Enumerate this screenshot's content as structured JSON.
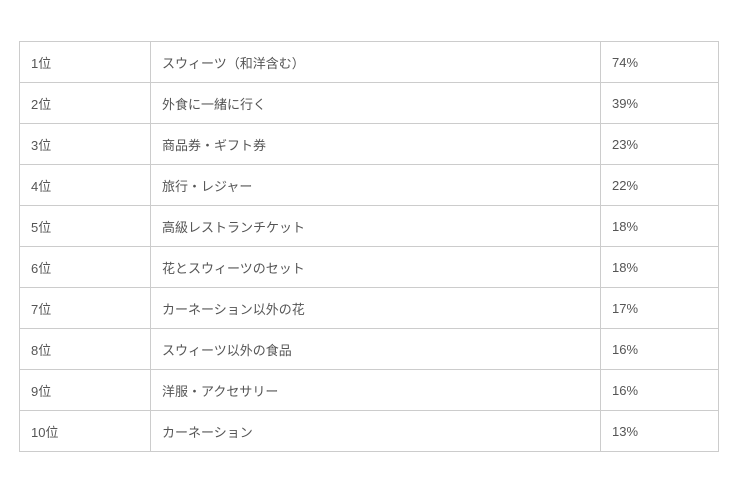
{
  "colors": {
    "background": "#ffffff",
    "border": "#cccccc",
    "text": "#555555"
  },
  "table": {
    "rows": [
      {
        "rank": "1位",
        "item": "スウィーツ（和洋含む）",
        "value": "74%"
      },
      {
        "rank": "2位",
        "item": "外食に一緒に行く",
        "value": "39%"
      },
      {
        "rank": "3位",
        "item": "商品券・ギフト券",
        "value": "23%"
      },
      {
        "rank": "4位",
        "item": "旅行・レジャー",
        "value": "22%"
      },
      {
        "rank": "5位",
        "item": "高級レストランチケット",
        "value": "18%"
      },
      {
        "rank": "6位",
        "item": "花とスウィーツのセット",
        "value": "18%"
      },
      {
        "rank": "7位",
        "item": "カーネーション以外の花",
        "value": "17%"
      },
      {
        "rank": "8位",
        "item": "スウィーツ以外の食品",
        "value": "16%"
      },
      {
        "rank": "9位",
        "item": "洋服・アクセサリー",
        "value": "16%"
      },
      {
        "rank": "10位",
        "item": "カーネーション",
        "value": "13%"
      }
    ]
  },
  "chart_data": {
    "type": "table",
    "rows": [
      [
        "1位",
        "スウィーツ（和洋含む）",
        "74%"
      ],
      [
        "2位",
        "外食に一緒に行く",
        "39%"
      ],
      [
        "3位",
        "商品券・ギフト券",
        "23%"
      ],
      [
        "4位",
        "旅行・レジャー",
        "22%"
      ],
      [
        "5位",
        "高級レストランチケット",
        "18%"
      ],
      [
        "6位",
        "花とスウィーツのセット",
        "18%"
      ],
      [
        "7位",
        "カーネーション以外の花",
        "17%"
      ],
      [
        "8位",
        "スウィーツ以外の食品",
        "16%"
      ],
      [
        "9位",
        "洋服・アクセサリー",
        "16%"
      ],
      [
        "10位",
        "カーネーション",
        "13%"
      ]
    ],
    "values_percent": [
      74,
      39,
      23,
      22,
      18,
      18,
      17,
      16,
      16,
      13
    ],
    "title": "",
    "legend": false,
    "grid": true
  }
}
